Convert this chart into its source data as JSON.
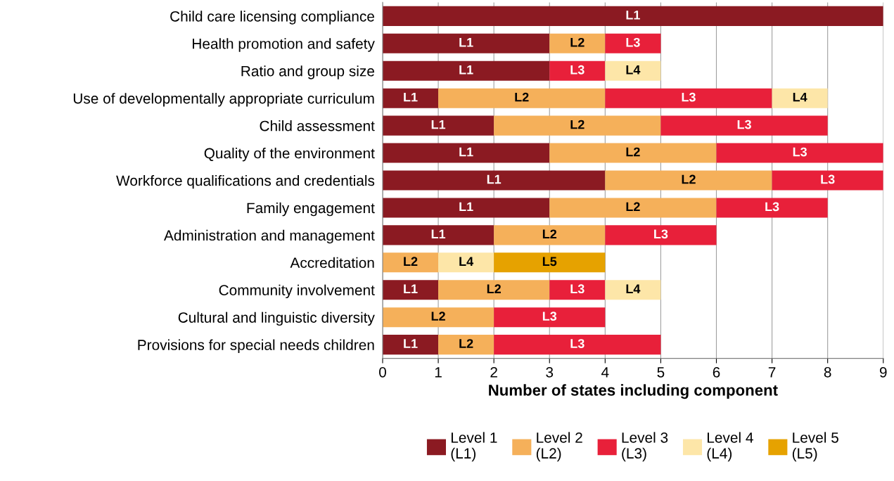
{
  "chart_data": {
    "type": "bar",
    "orientation": "horizontal",
    "stacked": true,
    "xlabel": "Number of states including component",
    "categories": [
      "Child care licensing compliance",
      "Health promotion and safety",
      "Ratio and group size",
      "Use of developmentally appropriate curriculum",
      "Child assessment",
      "Quality of the environment",
      "Workforce qualifications and credentials",
      "Family engagement",
      "Administration and management",
      "Accreditation",
      "Community involvement",
      "Cultural and linguistic diversity",
      "Provisions for special needs children"
    ],
    "series": [
      {
        "name": "Level 1\n(L1)",
        "color": "#8b1a22",
        "values": [
          9,
          3,
          3,
          1,
          2,
          3,
          4,
          3,
          2,
          null,
          1,
          null,
          1
        ],
        "value_labels": [
          "L1",
          "L1",
          "L1",
          "L1",
          "L1",
          "L1",
          "L1",
          "L1",
          "L1",
          null,
          "L1",
          null,
          "L1"
        ]
      },
      {
        "name": "Level 2\n(L2)",
        "color": "#f5b05a",
        "values": [
          null,
          1,
          null,
          3,
          3,
          3,
          3,
          3,
          2,
          1,
          2,
          2,
          1
        ],
        "value_labels": [
          null,
          "L2",
          null,
          "L2",
          "L2",
          "L2",
          "L2",
          "L2",
          "L2",
          "L2",
          "L2",
          "L2",
          "L2"
        ]
      },
      {
        "name": "Level 3\n(L3)",
        "color": "#e8203a",
        "values": [
          null,
          1,
          1,
          3,
          3,
          3,
          2,
          2,
          2,
          null,
          1,
          2,
          3
        ],
        "value_labels": [
          null,
          "L3",
          "L3",
          "L3",
          "L3",
          "L3",
          "L3",
          "L3",
          "L3",
          null,
          "L3",
          "L3",
          "L3"
        ]
      },
      {
        "name": "Level 4\n(L4)",
        "color": "#fde6a8",
        "values": [
          null,
          null,
          1,
          1,
          null,
          null,
          null,
          null,
          null,
          1,
          1,
          null,
          null
        ],
        "value_labels": [
          null,
          null,
          "L4",
          "L4",
          null,
          null,
          null,
          null,
          null,
          "L4",
          "L4",
          null,
          null
        ]
      },
      {
        "name": "Level 5\n(L5)",
        "color": "#e6a200",
        "values": [
          null,
          null,
          null,
          null,
          null,
          null,
          null,
          null,
          null,
          2,
          null,
          null,
          null
        ],
        "value_labels": [
          null,
          null,
          null,
          null,
          null,
          null,
          null,
          null,
          null,
          "L5",
          null,
          null,
          null
        ]
      }
    ],
    "xlim": [
      0,
      9
    ],
    "xticks": [
      0,
      1,
      2,
      3,
      4,
      5,
      6,
      7,
      8,
      9
    ],
    "grid": "x",
    "legend": "bottom"
  }
}
